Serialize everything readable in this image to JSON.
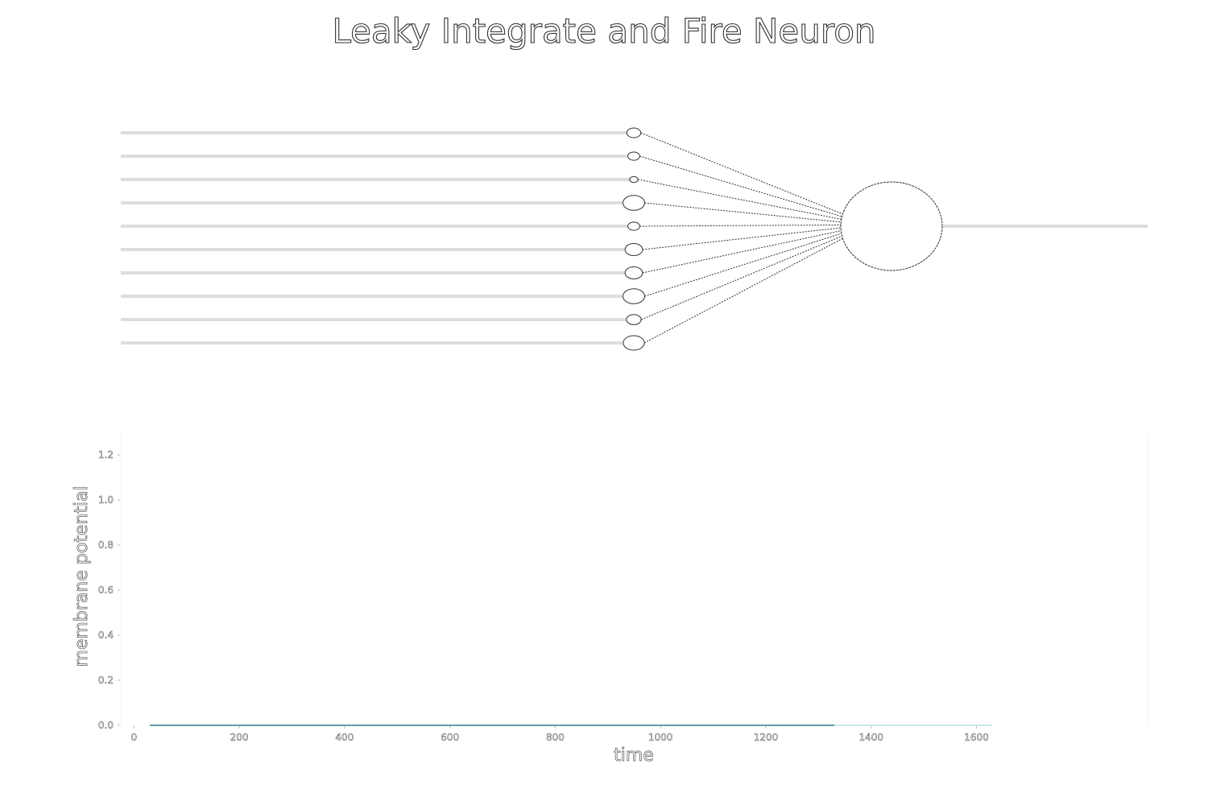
{
  "title": "Leaky Integrate and Fire Neuron",
  "network": {
    "input_count": 10,
    "synapse_sizes": [
      1.0,
      0.85,
      0.6,
      1.55,
      0.85,
      1.25,
      1.25,
      1.55,
      1.05,
      1.5
    ],
    "output_count": 1
  },
  "chart_data": {
    "type": "line",
    "xlabel": "time",
    "ylabel": "membrane potential",
    "xlim": [
      -25,
      1925
    ],
    "ylim": [
      0,
      1.3
    ],
    "x_ticks": [
      0,
      200,
      400,
      600,
      800,
      1000,
      1200,
      1400,
      1600
    ],
    "y_ticks": [
      0.0,
      0.2,
      0.4,
      0.6,
      0.8,
      1.0,
      1.2
    ],
    "series": [
      {
        "color": "#2a7f86",
        "x": [
          30,
          1330
        ],
        "y": [
          0.0,
          0.0
        ]
      },
      {
        "color": "#b8dfe4",
        "x": [
          1330,
          1630
        ],
        "y": [
          0.0,
          0.0
        ]
      }
    ],
    "grid": false,
    "legend": false
  }
}
